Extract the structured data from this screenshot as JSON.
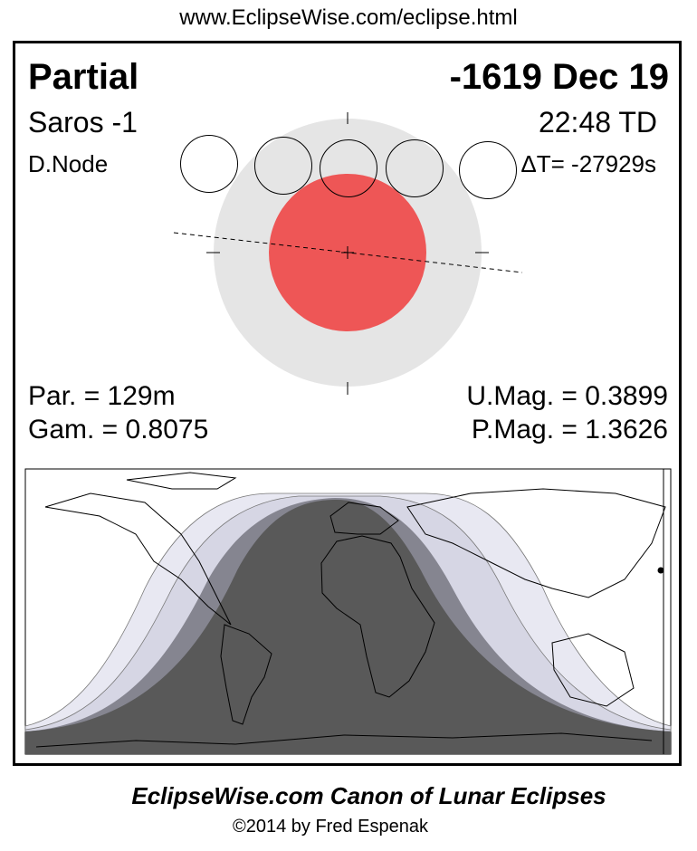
{
  "url": "www.EclipseWise.com/eclipse.html",
  "eclipse": {
    "type": "Partial",
    "date": "-1619 Dec 19",
    "saros": "Saros  -1",
    "time": "22:48 TD",
    "node": "D.Node",
    "delta_t": "ΔT= -27929s",
    "duration": "Par. = 129m",
    "gamma": "Gam. = 0.8075",
    "umbral_mag": "U.Mag. = 0.3899",
    "penumbral_mag": "P.Mag. = 1.3626"
  },
  "colors": {
    "umbra": "#ee5656",
    "penumbra": "#e5e5e5",
    "map_total": "#595959",
    "map_partial": "#858590",
    "map_pen_inner": "#d6d6e4",
    "map_pen_outer": "#e8e8f2"
  },
  "footer": {
    "title": "EclipseWise.com Canon of Lunar Eclipses",
    "copyright": "©2014 by Fred Espenak"
  }
}
